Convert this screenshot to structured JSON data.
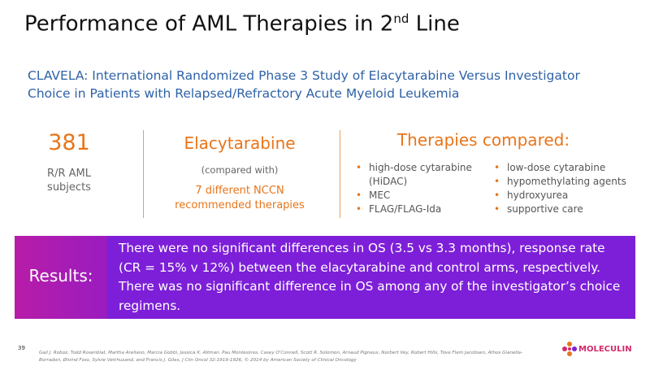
{
  "header": {
    "title_main": "Performance of AML Therapies in 2",
    "title_sup": "nd",
    "title_end": " Line",
    "subtitle": "CLAVELA: International Randomized Phase 3 Study of Elacytarabine Versus Investigator Choice in Patients with Relapsed/Refractory Acute Myeloid Leukemia"
  },
  "columns": {
    "subjects": {
      "number": "381",
      "label": "R/R AML subjects"
    },
    "drug": {
      "name": "Elacytarabine",
      "note": "(compared with)",
      "detail": "7 different NCCN recommended therapies"
    },
    "therapies": {
      "heading": "Therapies compared:",
      "left": [
        "high-dose cytarabine (HiDAC)",
        "MEC",
        "FLAG/FLAG-Ida"
      ],
      "right": [
        "low-dose cytarabine",
        "hypomethylating agents",
        "hydroxyurea",
        "supportive care"
      ]
    }
  },
  "results": {
    "label": "Results:",
    "text": "There were no significant differences in OS (3.5 vs 3.3 months), response rate (CR = 15% v 12%) between the elacytarabine and control arms, respectively. There was no significant difference in OS among any of the investigator’s choice regimens."
  },
  "footer": {
    "page": "39",
    "citation": "Gail J. Roboz, Todd Rosenblat, Martha Arellano, Marcia Gobbi, Jessica K. Altman, Pau Montesinos, Casey O'Connell, Scott R. Solomon, Arnaud Pigneux, Norbert Vey, Robert Hills, Tove Flem Jacobsen, Athos Gianella-Borradori, Øivind Foss, Sylvie Vetrhusand, and Francis J. Giles, J Clin Oncol 32:1919-1926, © 2014 by American Society of Clinical Oncology",
    "logo": "MOLECULIN"
  }
}
